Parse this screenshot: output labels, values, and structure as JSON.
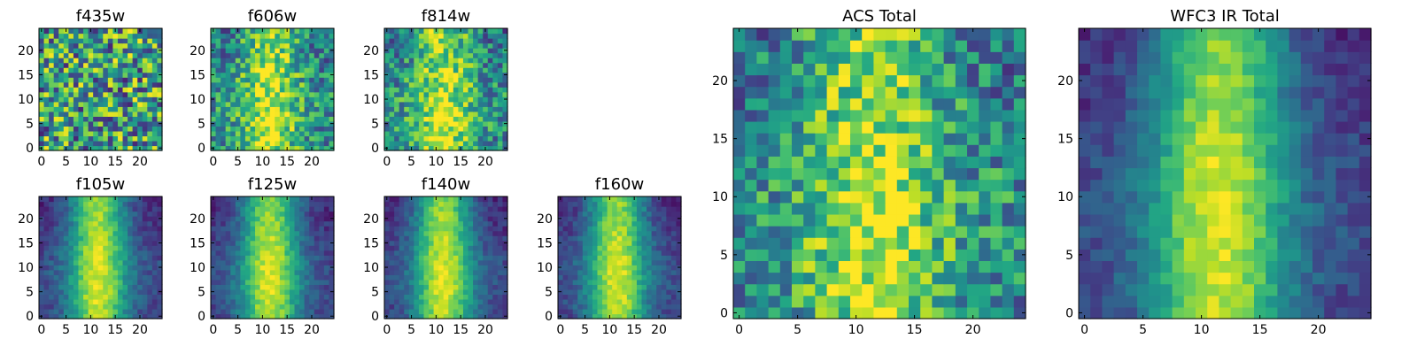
{
  "chart_data": [
    {
      "id": "f435w",
      "type": "heatmap",
      "title": "f435w",
      "grid": "25x25",
      "colormap": "viridis",
      "pattern": "noise",
      "x_ticks": [
        0,
        5,
        10,
        15,
        20
      ],
      "y_ticks": [
        0,
        5,
        10,
        15,
        20
      ],
      "xlim": [
        0,
        24
      ],
      "ylim": [
        0,
        24
      ]
    },
    {
      "id": "f606w",
      "type": "heatmap",
      "title": "f606w",
      "grid": "25x25",
      "colormap": "viridis",
      "pattern": "noisy_band",
      "x_ticks": [
        0,
        5,
        10,
        15,
        20
      ],
      "y_ticks": [
        0,
        5,
        10,
        15,
        20
      ],
      "xlim": [
        0,
        24
      ],
      "ylim": [
        0,
        24
      ]
    },
    {
      "id": "f814w",
      "type": "heatmap",
      "title": "f814w",
      "grid": "25x25",
      "colormap": "viridis",
      "pattern": "noisy_band",
      "x_ticks": [
        0,
        5,
        10,
        15,
        20
      ],
      "y_ticks": [
        0,
        5,
        10,
        15,
        20
      ],
      "xlim": [
        0,
        24
      ],
      "ylim": [
        0,
        24
      ]
    },
    {
      "id": "f105w",
      "type": "heatmap",
      "title": "f105w",
      "grid": "25x25",
      "colormap": "viridis",
      "pattern": "smooth_band",
      "x_ticks": [
        0,
        5,
        10,
        15,
        20
      ],
      "y_ticks": [
        0,
        5,
        10,
        15,
        20
      ],
      "xlim": [
        0,
        24
      ],
      "ylim": [
        0,
        24
      ]
    },
    {
      "id": "f125w",
      "type": "heatmap",
      "title": "f125w",
      "grid": "25x25",
      "colormap": "viridis",
      "pattern": "smooth_band",
      "x_ticks": [
        0,
        5,
        10,
        15,
        20
      ],
      "y_ticks": [
        0,
        5,
        10,
        15,
        20
      ],
      "xlim": [
        0,
        24
      ],
      "ylim": [
        0,
        24
      ]
    },
    {
      "id": "f140w",
      "type": "heatmap",
      "title": "f140w",
      "grid": "25x25",
      "colormap": "viridis",
      "pattern": "smooth_band",
      "x_ticks": [
        0,
        5,
        10,
        15,
        20
      ],
      "y_ticks": [
        0,
        5,
        10,
        15,
        20
      ],
      "xlim": [
        0,
        24
      ],
      "ylim": [
        0,
        24
      ]
    },
    {
      "id": "f160w",
      "type": "heatmap",
      "title": "f160w",
      "grid": "25x25",
      "colormap": "viridis",
      "pattern": "smooth_band",
      "x_ticks": [
        0,
        5,
        10,
        15,
        20
      ],
      "y_ticks": [
        0,
        5,
        10,
        15,
        20
      ],
      "xlim": [
        0,
        24
      ],
      "ylim": [
        0,
        24
      ]
    },
    {
      "id": "acs_total",
      "type": "heatmap",
      "title": "ACS Total",
      "grid": "25x25",
      "colormap": "viridis",
      "pattern": "noisy_band",
      "x_ticks": [
        0,
        5,
        10,
        15,
        20
      ],
      "y_ticks": [
        0,
        5,
        10,
        15,
        20
      ],
      "xlim": [
        0,
        24
      ],
      "ylim": [
        0,
        24
      ]
    },
    {
      "id": "wfc3_ir_total",
      "type": "heatmap",
      "title": "WFC3 IR Total",
      "grid": "25x25",
      "colormap": "viridis",
      "pattern": "smooth_band",
      "x_ticks": [
        0,
        5,
        10,
        15,
        20
      ],
      "y_ticks": [
        0,
        5,
        10,
        15,
        20
      ],
      "xlim": [
        0,
        24
      ],
      "ylim": [
        0,
        24
      ]
    }
  ]
}
